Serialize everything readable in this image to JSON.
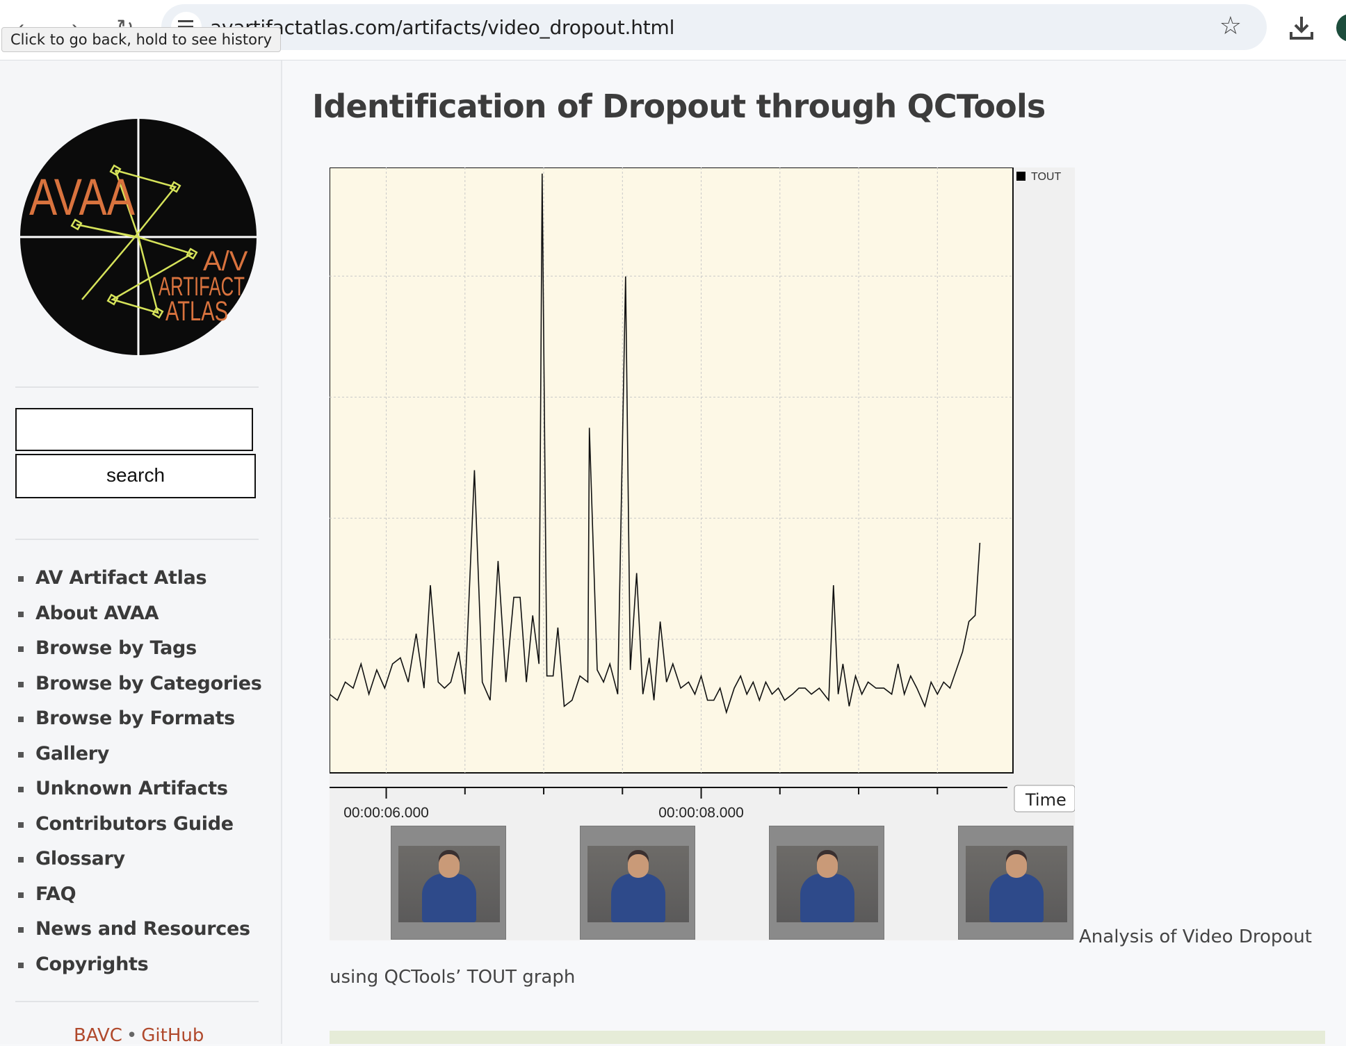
{
  "browser": {
    "url": "avartifactatlas.com/artifacts/video_dropout.html",
    "tooltip": "Click to go back, hold to see history",
    "icons": [
      "back-icon",
      "forward-icon",
      "reload-icon",
      "site-info-icon",
      "bookmark-star-icon",
      "download-icon",
      "profile-icon"
    ]
  },
  "sidebar": {
    "logo": {
      "main": "AVAA",
      "line1": "A/V",
      "line2": "ARTIFACT",
      "line3": "ATLAS"
    },
    "search": {
      "placeholder": "",
      "button_label": "search"
    },
    "nav": [
      "AV Artifact Atlas",
      "About AVAA",
      "Browse by Tags",
      "Browse by Categories",
      "Browse by Formats",
      "Gallery",
      "Unknown Artifacts",
      "Contributors Guide",
      "Glossary",
      "FAQ",
      "News and Resources",
      "Copyrights"
    ],
    "footer": {
      "link1": "BAVC",
      "separator": "•",
      "link2": "GitHub"
    }
  },
  "main": {
    "title": "Identification of Dropout through QCTools",
    "caption_part1": "Analysis of Video Dropout",
    "caption_part2": "using QCTools’ TOUT graph"
  },
  "colors": {
    "plot_bg": "#fdf8e6",
    "logo_text": "#d9733e",
    "logo_lines": "#d6e35a",
    "link": "#b0492c"
  },
  "chart_data": {
    "type": "line",
    "title": "",
    "xlabel": "Time",
    "ylabel": "",
    "legend": [
      {
        "name": "TOUT",
        "color": "#000000",
        "position": "top-right"
      }
    ],
    "x_tick_labels": [
      "00:00:06.000",
      "00:00:08.000"
    ],
    "x_range_seconds": [
      5.64,
      9.98
    ],
    "grid": true,
    "y_range": [
      0,
      1
    ],
    "series": [
      {
        "name": "TOUT",
        "points": [
          [
            5.64,
            0.13
          ],
          [
            5.69,
            0.12
          ],
          [
            5.74,
            0.15
          ],
          [
            5.79,
            0.14
          ],
          [
            5.84,
            0.18
          ],
          [
            5.89,
            0.13
          ],
          [
            5.94,
            0.17
          ],
          [
            5.99,
            0.14
          ],
          [
            6.04,
            0.18
          ],
          [
            6.09,
            0.19
          ],
          [
            6.14,
            0.15
          ],
          [
            6.19,
            0.23
          ],
          [
            6.24,
            0.14
          ],
          [
            6.28,
            0.31
          ],
          [
            6.33,
            0.15
          ],
          [
            6.37,
            0.14
          ],
          [
            6.41,
            0.15
          ],
          [
            6.46,
            0.2
          ],
          [
            6.5,
            0.13
          ],
          [
            6.56,
            0.5
          ],
          [
            6.61,
            0.15
          ],
          [
            6.66,
            0.12
          ],
          [
            6.71,
            0.35
          ],
          [
            6.76,
            0.15
          ],
          [
            6.81,
            0.29
          ],
          [
            6.85,
            0.29
          ],
          [
            6.89,
            0.15
          ],
          [
            6.93,
            0.26
          ],
          [
            6.97,
            0.18
          ],
          [
            6.99,
            0.99
          ],
          [
            7.02,
            0.16
          ],
          [
            7.06,
            0.16
          ],
          [
            7.09,
            0.24
          ],
          [
            7.13,
            0.11
          ],
          [
            7.18,
            0.12
          ],
          [
            7.23,
            0.16
          ],
          [
            7.28,
            0.15
          ],
          [
            7.29,
            0.57
          ],
          [
            7.34,
            0.17
          ],
          [
            7.38,
            0.15
          ],
          [
            7.42,
            0.18
          ],
          [
            7.47,
            0.13
          ],
          [
            7.52,
            0.82
          ],
          [
            7.55,
            0.17
          ],
          [
            7.59,
            0.33
          ],
          [
            7.63,
            0.13
          ],
          [
            7.67,
            0.19
          ],
          [
            7.7,
            0.12
          ],
          [
            7.74,
            0.25
          ],
          [
            7.78,
            0.15
          ],
          [
            7.82,
            0.18
          ],
          [
            7.87,
            0.14
          ],
          [
            7.92,
            0.15
          ],
          [
            7.96,
            0.13
          ],
          [
            8.0,
            0.16
          ],
          [
            8.04,
            0.12
          ],
          [
            8.08,
            0.12
          ],
          [
            8.12,
            0.14
          ],
          [
            8.16,
            0.1
          ],
          [
            8.21,
            0.14
          ],
          [
            8.25,
            0.16
          ],
          [
            8.29,
            0.13
          ],
          [
            8.33,
            0.15
          ],
          [
            8.37,
            0.12
          ],
          [
            8.41,
            0.15
          ],
          [
            8.45,
            0.13
          ],
          [
            8.49,
            0.14
          ],
          [
            8.53,
            0.12
          ],
          [
            8.58,
            0.13
          ],
          [
            8.62,
            0.14
          ],
          [
            8.66,
            0.14
          ],
          [
            8.7,
            0.13
          ],
          [
            8.75,
            0.14
          ],
          [
            8.81,
            0.12
          ],
          [
            8.84,
            0.31
          ],
          [
            8.87,
            0.13
          ],
          [
            8.9,
            0.18
          ],
          [
            8.94,
            0.11
          ],
          [
            8.98,
            0.16
          ],
          [
            9.02,
            0.13
          ],
          [
            9.06,
            0.15
          ],
          [
            9.11,
            0.14
          ],
          [
            9.16,
            0.14
          ],
          [
            9.21,
            0.13
          ],
          [
            9.25,
            0.18
          ],
          [
            9.29,
            0.13
          ],
          [
            9.33,
            0.16
          ],
          [
            9.37,
            0.14
          ],
          [
            9.42,
            0.11
          ],
          [
            9.46,
            0.15
          ],
          [
            9.5,
            0.13
          ],
          [
            9.54,
            0.15
          ],
          [
            9.58,
            0.14
          ],
          [
            9.62,
            0.17
          ],
          [
            9.66,
            0.2
          ],
          [
            9.7,
            0.25
          ],
          [
            9.74,
            0.26
          ],
          [
            9.77,
            0.38
          ]
        ]
      }
    ]
  }
}
